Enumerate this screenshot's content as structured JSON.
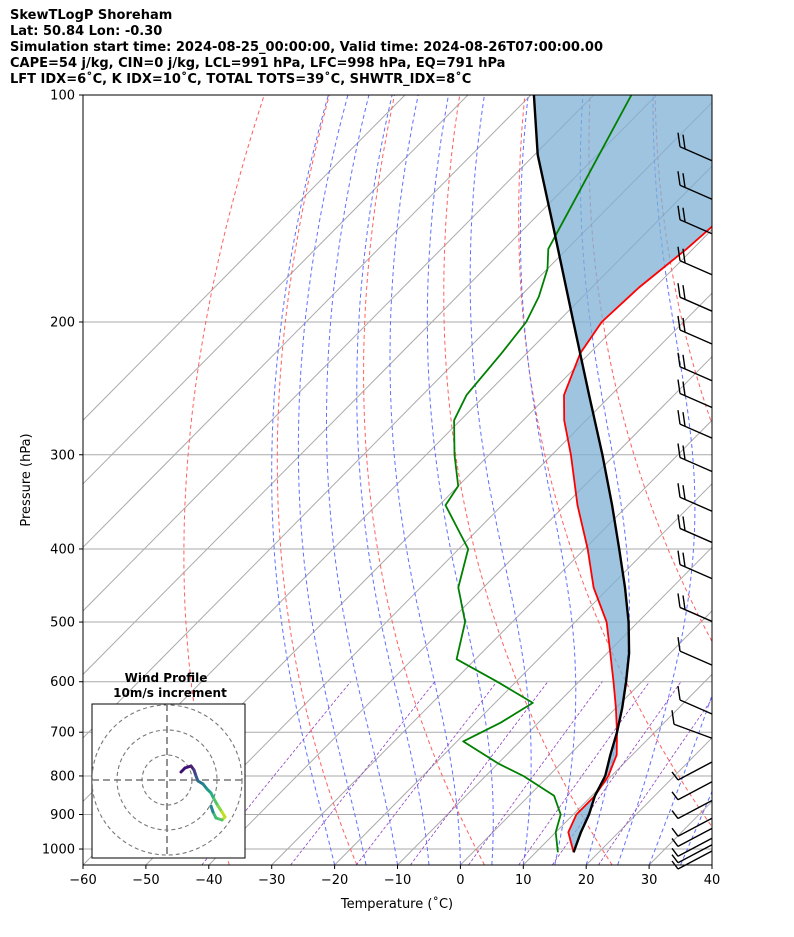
{
  "header": {
    "title": "SkewTLogP Shoreham",
    "location": "Lat: 50.84   Lon: -0.30",
    "times": "Simulation start time: 2024-08-25_00:00:00, Valid time: 2024-08-26T07:00:00.00",
    "indices_1": "CAPE=54 j/kg, CIN=0 j/kg, LCL=991 hPa, LFC=998 hPa, EQ=791 hPa",
    "indices_2": "LFT IDX=6˚C, K IDX=10˚C, TOTAL TOTS=39˚C, SHWTR_IDX=8˚C"
  },
  "colors": {
    "temperature": "#ff0000",
    "dewpoint": "#008000",
    "parcel": "#000000",
    "cape_fill": "#7eb0d5",
    "cin_fill": "#f08080",
    "isotherm": "#aaaaaa",
    "dry_adiabat": "#ff6060",
    "moist_adiabat": "#6070ff",
    "mixing_ratio": "#9040c0"
  },
  "chart_data": {
    "type": "line",
    "xlabel": "Temperature (˚C)",
    "ylabel": "Pressure (hPa)",
    "xlim": [
      -60,
      40
    ],
    "ylim": [
      1050,
      100
    ],
    "y_scale": "log",
    "grid": true,
    "x_ticks": [
      -60,
      -50,
      -40,
      -30,
      -20,
      -10,
      0,
      10,
      20,
      30,
      40
    ],
    "y_ticks": [
      1000,
      900,
      800,
      700,
      600,
      500,
      400,
      300,
      200,
      100
    ],
    "series": [
      {
        "key": "temperature",
        "pressure": [
          1010,
          950,
          900,
          850,
          800,
          750,
          700,
          650,
          600,
          550,
          500,
          450,
          400,
          350,
          300,
          270,
          250,
          220,
          200,
          180,
          160,
          140,
          120,
          110,
          100
        ],
        "temperature": [
          16.0,
          12.0,
          10.5,
          10.5,
          9.5,
          7.5,
          4.0,
          0.0,
          -4.5,
          -9.5,
          -15.0,
          -22.5,
          -29.5,
          -38.0,
          -47.0,
          -53.5,
          -57.5,
          -61.5,
          -63.0,
          -62.5,
          -61.0,
          -60.0,
          -60.0,
          -60.5,
          -60.5
        ]
      },
      {
        "key": "dewpoint",
        "pressure": [
          1010,
          950,
          900,
          850,
          800,
          770,
          720,
          680,
          640,
          600,
          560,
          500,
          450,
          400,
          350,
          330,
          300,
          270,
          250,
          220,
          200,
          185,
          170,
          160,
          100
        ],
        "temperature": [
          13.5,
          10.0,
          8.0,
          4.0,
          -4.0,
          -10.0,
          -19.0,
          -16.0,
          -14.0,
          -23.0,
          -33.0,
          -37.5,
          -44.0,
          -48.5,
          -59.0,
          -60.0,
          -65.5,
          -71.0,
          -73.0,
          -74.0,
          -75.0,
          -77.0,
          -80.0,
          -83.0,
          -94.0
        ]
      },
      {
        "key": "parcel",
        "pressure": [
          1010,
          950,
          900,
          850,
          800,
          750,
          700,
          650,
          600,
          550,
          500,
          450,
          400,
          350,
          300,
          250,
          200,
          150,
          120,
          100
        ],
        "temperature": [
          16.0,
          14.0,
          12.5,
          10.5,
          9.0,
          6.5,
          4.0,
          1.0,
          -2.5,
          -6.5,
          -11.5,
          -17.5,
          -24.5,
          -32.5,
          -42.0,
          -53.5,
          -67.5,
          -85.5,
          -99.5,
          -109.5
        ]
      }
    ],
    "wind_barbs_pressure": [
      1050,
      1030,
      1010,
      980,
      950,
      900,
      850,
      800,
      700,
      650,
      560,
      490,
      430,
      385,
      350,
      310,
      280,
      255,
      235,
      210,
      190,
      170,
      150,
      135,
      120
    ]
  },
  "inset": {
    "title": "Wind Profile",
    "subtitle": "10m/s increment"
  }
}
